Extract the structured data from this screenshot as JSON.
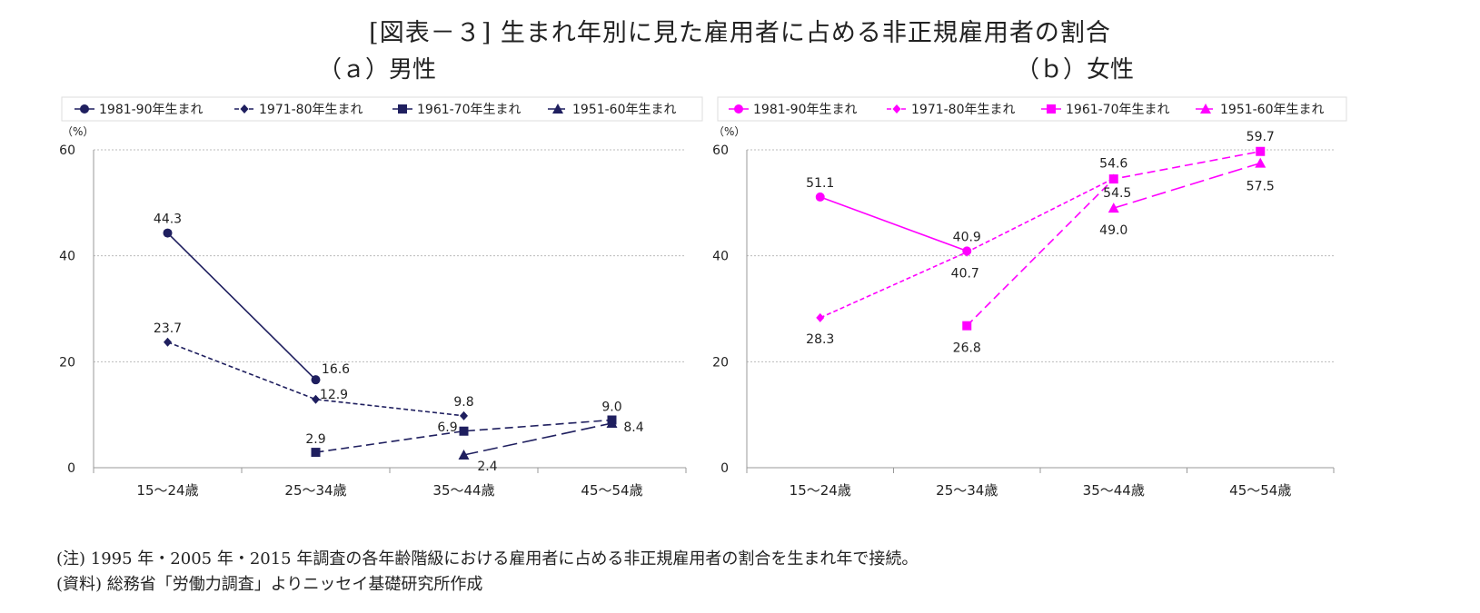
{
  "title": "[図表－３] 生まれ年別に見た雇用者に占める非正規雇用者の割合",
  "panels": {
    "a": {
      "title": "（ａ）男性"
    },
    "b": {
      "title": "（ｂ）女性"
    }
  },
  "notes": {
    "note": "(注) 1995 年・2005 年・2015 年調査の各年齢階級における雇用者に占める非正規雇用者の割合を生まれ年で接続。",
    "source": "(資料) 総務省「労働力調査」よりニッセイ基礎研究所作成"
  },
  "chart_data": [
    {
      "type": "line",
      "title": "（ａ）男性",
      "ylabel": "（%）",
      "categories": [
        "15～24歳",
        "25～34歳",
        "35～44歳",
        "45～54歳"
      ],
      "ylim": [
        0,
        60
      ],
      "yticks": [
        0,
        20,
        40,
        60
      ],
      "grid": true,
      "legend": "top",
      "color": "#1f1f5f",
      "series": [
        {
          "name": "1981-90年生まれ",
          "marker": "circle",
          "dash": "solid",
          "values": [
            44.3,
            16.6,
            null,
            null
          ]
        },
        {
          "name": "1971-80年生まれ",
          "marker": "diamond",
          "dash": "dotted",
          "values": [
            23.7,
            12.9,
            9.8,
            null
          ]
        },
        {
          "name": "1961-70年生まれ",
          "marker": "square",
          "dash": "dashed",
          "values": [
            null,
            2.9,
            6.9,
            9.0
          ]
        },
        {
          "name": "1951-60年生まれ",
          "marker": "triangle",
          "dash": "longdash",
          "values": [
            null,
            null,
            2.4,
            8.4
          ]
        }
      ]
    },
    {
      "type": "line",
      "title": "（ｂ）女性",
      "ylabel": "（%）",
      "categories": [
        "15～24歳",
        "25～34歳",
        "35～44歳",
        "45～54歳"
      ],
      "ylim": [
        0,
        60
      ],
      "yticks": [
        0,
        20,
        40,
        60
      ],
      "grid": true,
      "legend": "top",
      "color": "#ff00ff",
      "series": [
        {
          "name": "1981-90年生まれ",
          "marker": "circle",
          "dash": "solid",
          "values": [
            51.1,
            40.9,
            null,
            null
          ]
        },
        {
          "name": "1971-80年生まれ",
          "marker": "diamond",
          "dash": "dotted",
          "values": [
            28.3,
            40.7,
            54.6,
            null
          ]
        },
        {
          "name": "1961-70年生まれ",
          "marker": "square",
          "dash": "dashed",
          "values": [
            null,
            26.8,
            54.5,
            59.7
          ]
        },
        {
          "name": "1951-60年生まれ",
          "marker": "triangle",
          "dash": "longdash",
          "values": [
            null,
            null,
            49.0,
            57.5
          ]
        }
      ]
    }
  ]
}
